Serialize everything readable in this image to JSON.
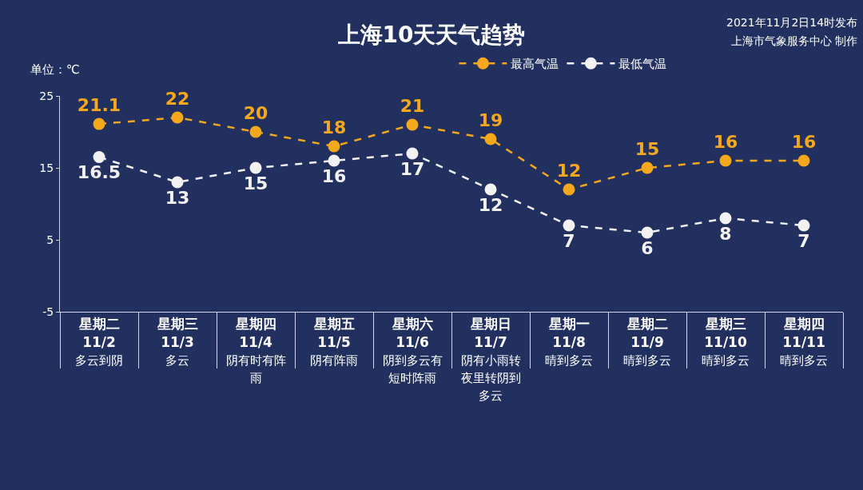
{
  "chart_data": {
    "type": "line",
    "title": "上海10天天气趋势",
    "ylabel": "单位：℃",
    "annotations": [
      "2021年11月2日14时发布",
      "上海市气象服务中心 制作"
    ],
    "categories": [
      "星期二\n11/2\n多云到阴",
      "星期三\n11/3\n多云",
      "星期四\n11/4\n阴有时有阵雨",
      "星期五\n11/5\n阴有阵雨",
      "星期六\n11/6\n阴到多云有短时阵雨",
      "星期日\n11/7\n阴有小雨转夜里转阴到多云",
      "星期一\n11/8\n晴到多云",
      "星期二\n11/9\n晴到多云",
      "星期三\n11/10\n晴到多云",
      "星期四\n11/11\n晴到多云"
    ],
    "series": [
      {
        "name": "最高气温",
        "color": "#f5a81c",
        "values": [
          21.1,
          22,
          20,
          18,
          21,
          19,
          12,
          15,
          16,
          16
        ]
      },
      {
        "name": "最低气温",
        "color": "#f2f2f2",
        "values": [
          16.5,
          13,
          15,
          16,
          17,
          12,
          7,
          6,
          8,
          7
        ]
      }
    ],
    "ylim": [
      -5,
      25
    ],
    "yticks": [
      -5,
      5,
      15,
      25
    ],
    "grid": false,
    "legend": "top right",
    "marker": "circle",
    "line_style": "dashed",
    "data_labels": true
  }
}
